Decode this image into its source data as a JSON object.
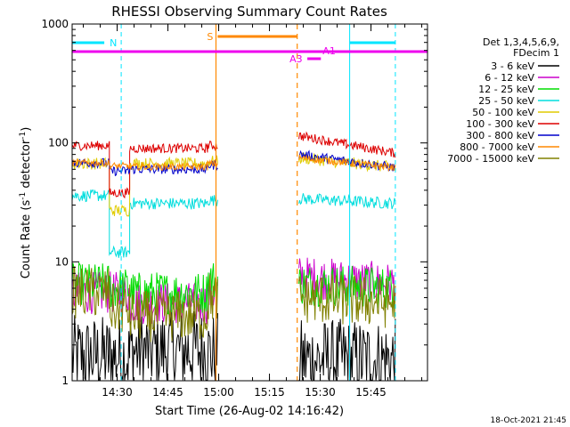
{
  "chart_data": {
    "type": "line",
    "title": "RHESSI Observing Summary Count Rates",
    "xlabel": "Start Time (26-Aug-02 14:16:42)",
    "ylabel_base": "Count Rate (s",
    "ylabel_sup1": "-1",
    "ylabel_mid": " detector",
    "ylabel_sup2": "-1",
    "ylabel_end": ")",
    "yscale": "log",
    "ylim": [
      1,
      1000
    ],
    "xlim_min": [
      0,
      105
    ],
    "x_ticks": [
      {
        "label": "14:30",
        "min": 13.3
      },
      {
        "label": "14:45",
        "min": 28.3
      },
      {
        "label": "15:00",
        "min": 43.3
      },
      {
        "label": "15:15",
        "min": 58.3
      },
      {
        "label": "15:30",
        "min": 73.3
      },
      {
        "label": "15:45",
        "min": 88.3
      }
    ],
    "y_ticks": [
      {
        "label": "1",
        "v": 1
      },
      {
        "label": "10",
        "v": 10
      },
      {
        "label": "100",
        "v": 100
      },
      {
        "label": "1000",
        "v": 1000
      }
    ],
    "legend_header": [
      "Det 1,3,4,5,6,9,",
      "FDecim 1"
    ],
    "series": [
      {
        "name": "3 - 6 keV",
        "color": "#000000"
      },
      {
        "name": "6 - 12 keV",
        "color": "#cc00cc"
      },
      {
        "name": "12 - 25 keV",
        "color": "#00dd00"
      },
      {
        "name": "25 - 50 keV",
        "color": "#00dddd"
      },
      {
        "name": "50 - 100 keV",
        "color": "#e0cc00"
      },
      {
        "name": "100 - 300 keV",
        "color": "#dd0000"
      },
      {
        "name": "300 - 800 keV",
        "color": "#0000cc"
      },
      {
        "name": "800 - 7000 keV",
        "color": "#ff8800"
      },
      {
        "name": "7000 - 15000 keV",
        "color": "#808000"
      }
    ],
    "segments": [
      {
        "start": 0,
        "end": 43
      },
      {
        "start": 67,
        "end": 95.5
      }
    ],
    "levels": {
      "seg1": {
        "s0": [
          1.6,
          1.6,
          1.8,
          1.7
        ],
        "s1": [
          5.5,
          5.5,
          4.5,
          5.5
        ],
        "s2": [
          6.5,
          6.0,
          5.5,
          7.0
        ],
        "s3": [
          36,
          12,
          31,
          33
        ],
        "s4": [
          67,
          27,
          67,
          70
        ],
        "s5": [
          95,
          38,
          90,
          95
        ],
        "s6": [
          68,
          58,
          60,
          65
        ],
        "s7": [
          68,
          64,
          63,
          67
        ],
        "s8": [
          5.5,
          4.0,
          3.5,
          5.0
        ]
      },
      "seg2": {
        "s0": [
          1.5,
          1.5
        ],
        "s1": [
          7.5,
          6.5
        ],
        "s2": [
          6.5,
          6.0
        ],
        "s3": [
          34,
          31
        ],
        "s4": [
          75,
          62
        ],
        "s5": [
          115,
          82
        ],
        "s6": [
          80,
          62
        ],
        "s7": [
          75,
          62
        ],
        "s8": [
          5.0,
          4.5
        ]
      }
    },
    "markers": {
      "N_label": "N",
      "S_label": "S",
      "A1_label": "A1",
      "A3_label": "A3",
      "night_windows": [
        [
          0,
          9.5
        ],
        [
          82,
          95.5
        ]
      ],
      "S_window": [
        43,
        66.5
      ],
      "A1_window": [
        0,
        105
      ],
      "A3_window": [
        69.5,
        73.5
      ],
      "vlines_solid_cyan": [
        0,
        82
      ],
      "vlines_dashed_cyan": [
        14.5,
        95.5
      ],
      "vline_solid_orange": 42.5,
      "vline_dashed_orange": 66.5
    }
  },
  "footer": {
    "date_stamp": "18-Oct-2021 21:45"
  }
}
